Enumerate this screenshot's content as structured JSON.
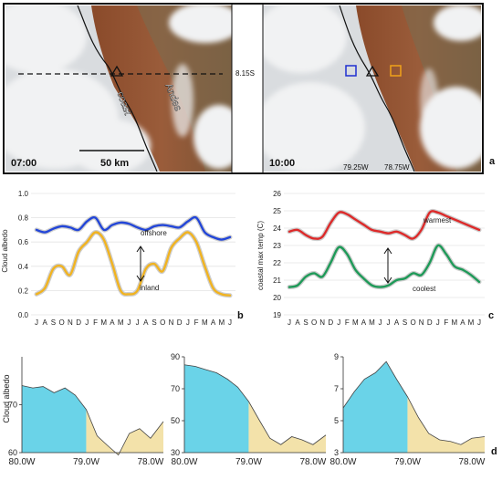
{
  "panel_letters": {
    "a": "a",
    "b": "b",
    "c": "c",
    "d": "d"
  },
  "satellite": {
    "left": {
      "time": "07:00",
      "scale_label": "50 km",
      "coast_label": "coast",
      "andes_label": "Andes"
    },
    "right": {
      "time": "10:00",
      "lon_labels": [
        "79.25W",
        "78.75W"
      ]
    },
    "lat_label": "8.15S",
    "colors": {
      "offshore_box": "#1f2fd0",
      "inland_box": "#f0a21a"
    }
  },
  "chart_data": [
    {
      "id": "b",
      "type": "line",
      "ylabel": "Cloud albedo",
      "ylim": [
        0.0,
        1.0
      ],
      "yticks": [
        "0.0",
        "0.2",
        "0.4",
        "0.6",
        "0.8",
        "1.0"
      ],
      "categories": [
        "J",
        "A",
        "S",
        "O",
        "N",
        "D",
        "J",
        "F",
        "M",
        "A",
        "M",
        "J",
        "J",
        "A",
        "S",
        "O",
        "N",
        "D",
        "J",
        "F",
        "M",
        "A",
        "M",
        "J"
      ],
      "grid": true,
      "series": [
        {
          "name": "offshore",
          "color": "#2346d8",
          "values": [
            0.7,
            0.68,
            0.71,
            0.73,
            0.72,
            0.7,
            0.77,
            0.8,
            0.7,
            0.74,
            0.76,
            0.75,
            0.72,
            0.7,
            0.73,
            0.74,
            0.73,
            0.72,
            0.77,
            0.8,
            0.68,
            0.64,
            0.62,
            0.64
          ]
        },
        {
          "name": "inland",
          "color": "#f1b320",
          "values": [
            0.17,
            0.22,
            0.38,
            0.4,
            0.33,
            0.52,
            0.6,
            0.68,
            0.62,
            0.42,
            0.2,
            0.17,
            0.2,
            0.38,
            0.42,
            0.36,
            0.55,
            0.63,
            0.68,
            0.6,
            0.4,
            0.22,
            0.17,
            0.16
          ]
        }
      ]
    },
    {
      "id": "c",
      "type": "line",
      "ylabel": "coastal max temp (C)",
      "ylim": [
        19,
        26
      ],
      "yticks": [
        "19",
        "20",
        "21",
        "22",
        "23",
        "24",
        "25",
        "26"
      ],
      "categories": [
        "J",
        "A",
        "S",
        "O",
        "N",
        "D",
        "J",
        "F",
        "M",
        "A",
        "M",
        "J",
        "J",
        "A",
        "S",
        "O",
        "N",
        "D",
        "J",
        "F",
        "M",
        "A",
        "M",
        "J"
      ],
      "grid": true,
      "series": [
        {
          "name": "warmest",
          "color": "#dd2a2a",
          "values": [
            23.8,
            23.9,
            23.6,
            23.4,
            23.5,
            24.3,
            24.9,
            24.8,
            24.5,
            24.2,
            23.9,
            23.8,
            23.7,
            23.8,
            23.6,
            23.4,
            23.9,
            24.9,
            24.9,
            24.7,
            24.5,
            24.3,
            24.1,
            23.9
          ]
        },
        {
          "name": "coolest",
          "color": "#1e9a58",
          "values": [
            20.6,
            20.7,
            21.2,
            21.4,
            21.2,
            22.0,
            22.9,
            22.5,
            21.6,
            21.1,
            20.7,
            20.6,
            20.7,
            21.0,
            21.1,
            21.4,
            21.3,
            22.0,
            23.0,
            22.5,
            21.8,
            21.6,
            21.3,
            20.9
          ]
        }
      ]
    },
    {
      "id": "d1",
      "type": "area",
      "ylabel": "Cloud albedo",
      "ylim": [
        60,
        80
      ],
      "yticks": [
        "60",
        "70"
      ],
      "xticks": [
        "80.0W",
        "79.0W",
        "78.0W"
      ],
      "xlim": [
        80.0,
        77.8
      ],
      "split_x": 79.0,
      "offshore_color": "#6ad3e8",
      "inland_color": "#f3e2aa",
      "x": [
        80.0,
        79.83,
        79.67,
        79.5,
        79.33,
        79.17,
        79.0,
        78.83,
        78.67,
        78.5,
        78.33,
        78.17,
        78.0,
        77.8
      ],
      "values": [
        74.0,
        73.5,
        73.8,
        72.5,
        73.5,
        72.0,
        69.0,
        63.5,
        61.5,
        59.5,
        64.0,
        65.0,
        63.0,
        66.5
      ]
    },
    {
      "id": "d2",
      "type": "area",
      "ylim": [
        30,
        90
      ],
      "yticks": [
        "30",
        "50",
        "70",
        "90"
      ],
      "xticks": [
        "80.0W",
        "79.0W",
        "78.0W"
      ],
      "xlim": [
        80.0,
        77.8
      ],
      "split_x": 79.0,
      "offshore_color": "#6ad3e8",
      "inland_color": "#f3e2aa",
      "x": [
        80.0,
        79.83,
        79.67,
        79.5,
        79.33,
        79.17,
        79.0,
        78.83,
        78.67,
        78.5,
        78.33,
        78.17,
        78.0,
        77.8
      ],
      "values": [
        85.0,
        84.0,
        82.0,
        80.0,
        76.0,
        71.0,
        62.0,
        50.0,
        39.0,
        35.0,
        40.0,
        38.0,
        35.0,
        41.0
      ]
    },
    {
      "id": "d3",
      "type": "area",
      "ylim": [
        3,
        9
      ],
      "yticks": [
        "3",
        "5",
        "7",
        "9"
      ],
      "xticks": [
        "80.0W",
        "79.0W",
        "78.0W"
      ],
      "xlim": [
        80.0,
        77.8
      ],
      "split_x": 79.0,
      "offshore_color": "#6ad3e8",
      "inland_color": "#f3e2aa",
      "x": [
        80.0,
        79.83,
        79.67,
        79.5,
        79.33,
        79.17,
        79.0,
        78.83,
        78.67,
        78.5,
        78.33,
        78.17,
        78.0,
        77.8
      ],
      "values": [
        5.8,
        6.8,
        7.6,
        8.0,
        8.7,
        7.6,
        6.5,
        5.2,
        4.2,
        3.8,
        3.7,
        3.5,
        3.9,
        4.0
      ]
    }
  ]
}
